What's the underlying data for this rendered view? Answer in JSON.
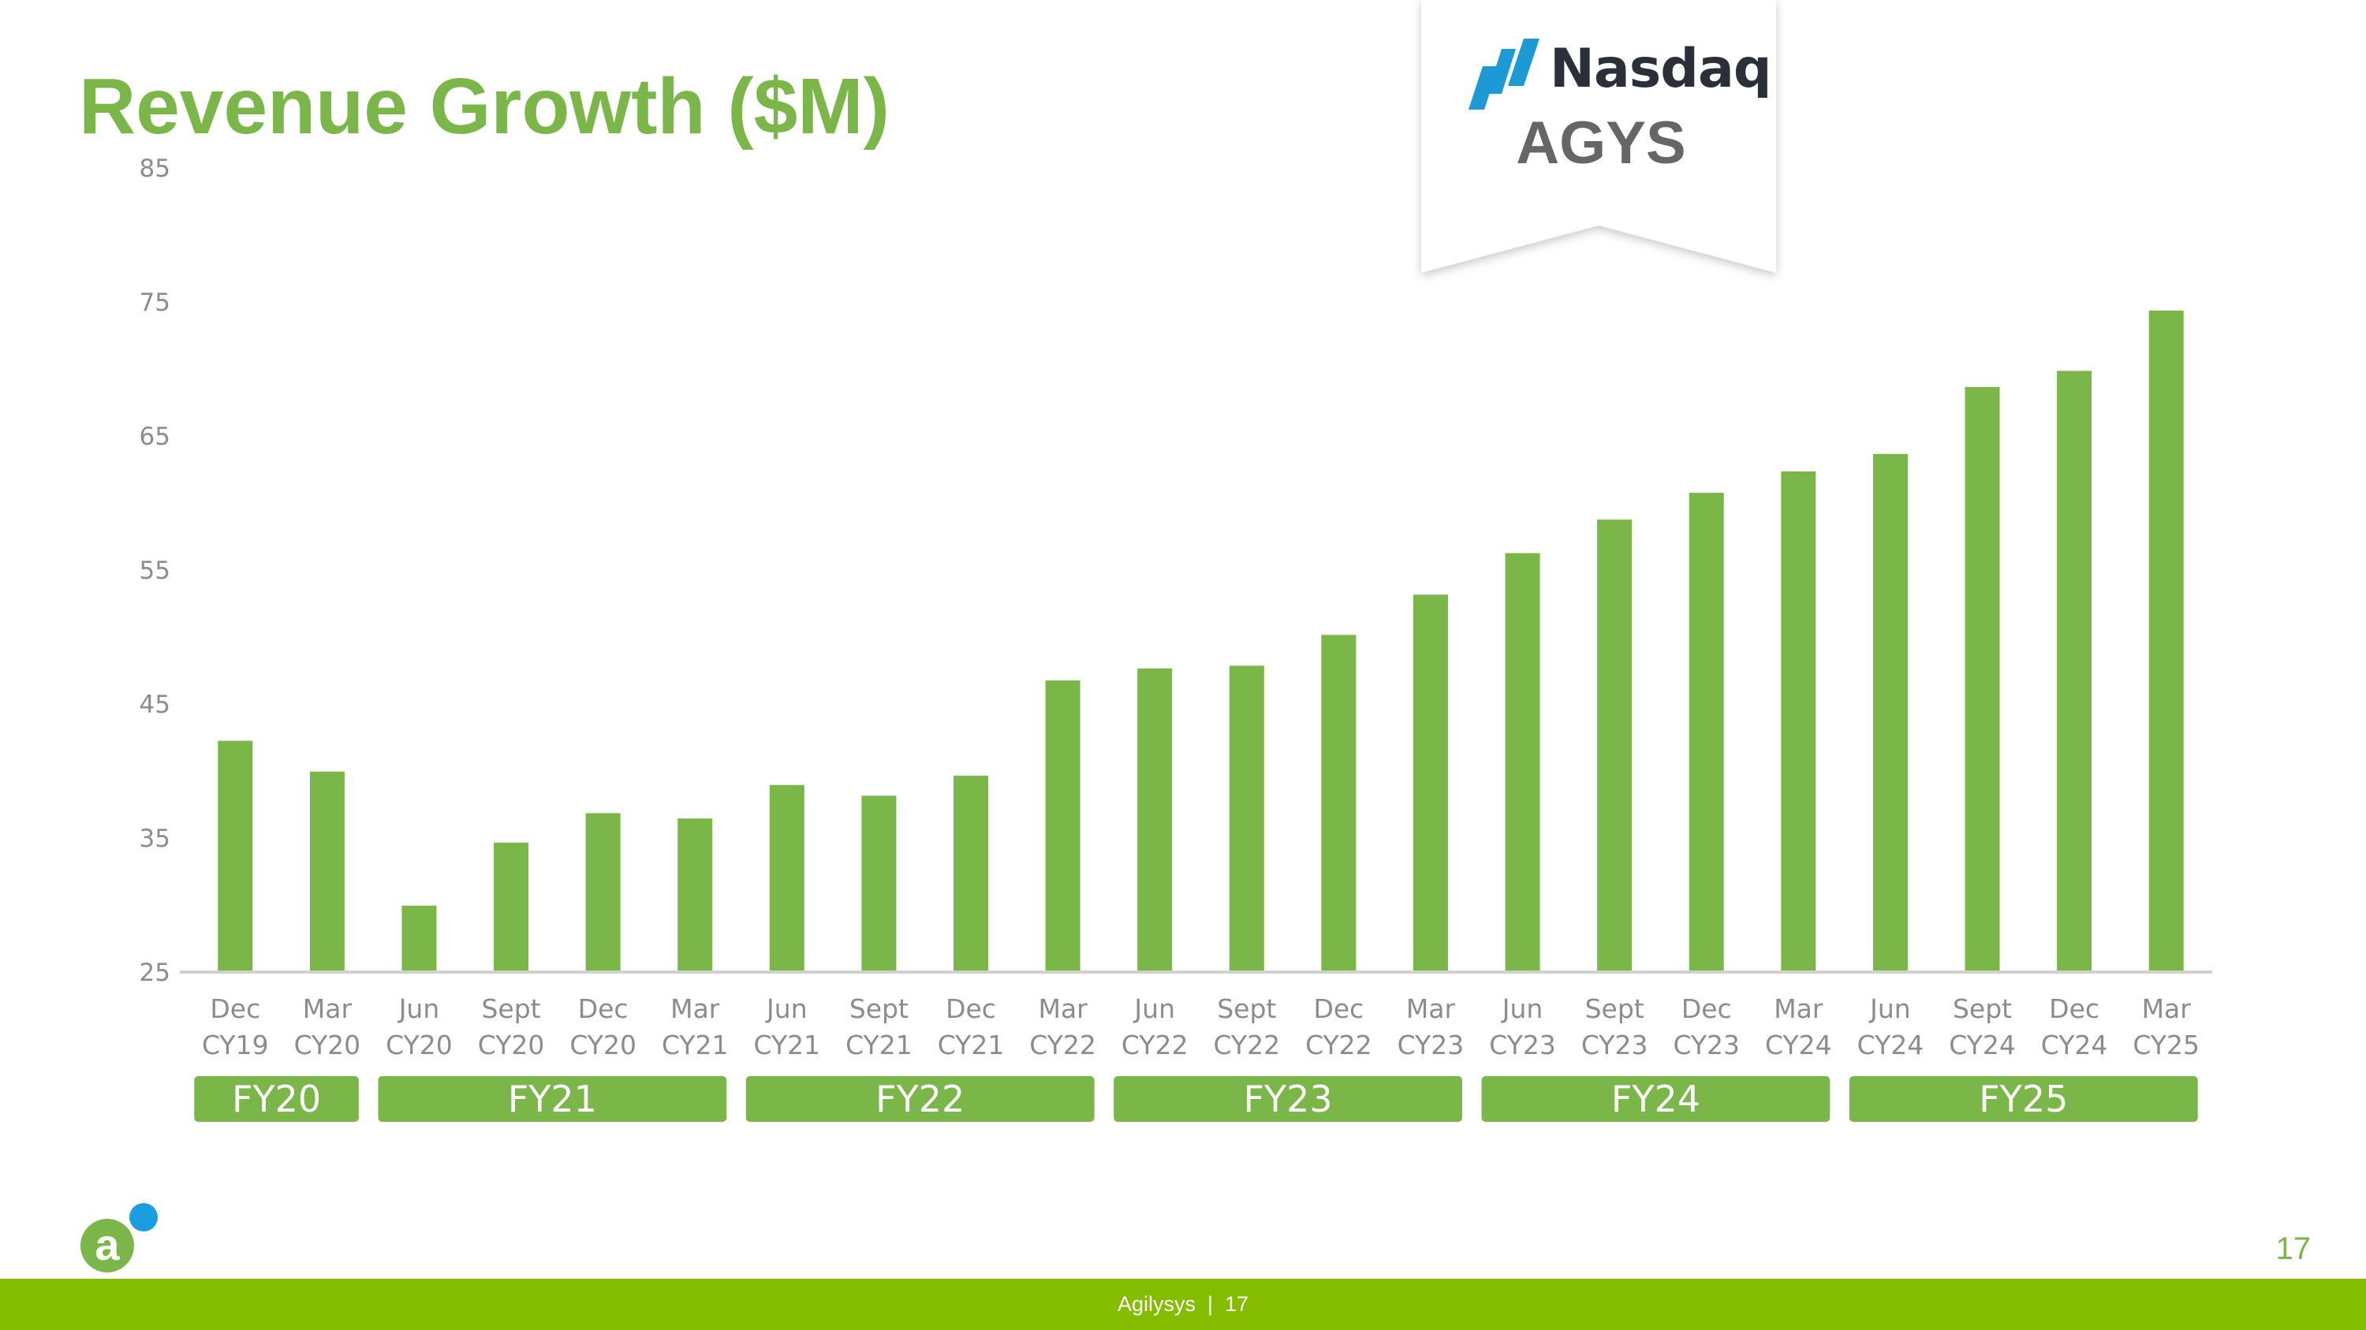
{
  "slide": {
    "title": "Revenue Growth ($M)",
    "page_number": "17",
    "footer_text": "Agilysys  |  17"
  },
  "badge": {
    "exchange": "Nasdaq",
    "ticker": "AGYS",
    "logo_icon": "nasdaq-logo-icon"
  },
  "company_logo": {
    "icon": "agilysys-logo-icon",
    "letter": "a"
  },
  "colors": {
    "title": "#7ab648",
    "bar": "#7ab648",
    "group_box": "#7ab648",
    "footer": "#84bd00",
    "nasdaq_blue": "#1b9ad6",
    "logo_dot": "#1a9ee0"
  },
  "chart_data": {
    "type": "bar",
    "categories": [
      [
        "Dec",
        "CY19"
      ],
      [
        "Mar",
        "CY20"
      ],
      [
        "Jun",
        "CY20"
      ],
      [
        "Sept",
        "CY20"
      ],
      [
        "Dec",
        "CY20"
      ],
      [
        "Mar",
        "CY21"
      ],
      [
        "Jun",
        "CY21"
      ],
      [
        "Sept",
        "CY21"
      ],
      [
        "Dec",
        "CY21"
      ],
      [
        "Mar",
        "CY22"
      ],
      [
        "Jun",
        "CY22"
      ],
      [
        "Sept",
        "CY22"
      ],
      [
        "Dec",
        "CY22"
      ],
      [
        "Mar",
        "CY23"
      ],
      [
        "Jun",
        "CY23"
      ],
      [
        "Sept",
        "CY23"
      ],
      [
        "Dec",
        "CY23"
      ],
      [
        "Mar",
        "CY24"
      ],
      [
        "Jun",
        "CY24"
      ],
      [
        "Sept",
        "CY24"
      ],
      [
        "Dec",
        "CY24"
      ],
      [
        "Mar",
        "CY25"
      ]
    ],
    "values": [
      42.2,
      39.9,
      29.9,
      34.6,
      36.8,
      36.4,
      38.9,
      38.1,
      39.6,
      46.7,
      47.6,
      47.8,
      50.1,
      53.1,
      56.2,
      58.7,
      60.7,
      62.3,
      63.6,
      68.6,
      69.8,
      74.3
    ],
    "ylim": [
      25,
      85
    ],
    "yticks": [
      25,
      35,
      45,
      55,
      65,
      75,
      85
    ],
    "groups": [
      {
        "label": "FY20",
        "from": 0,
        "to": 1
      },
      {
        "label": "FY21",
        "from": 2,
        "to": 5
      },
      {
        "label": "FY22",
        "from": 6,
        "to": 9
      },
      {
        "label": "FY23",
        "from": 10,
        "to": 13
      },
      {
        "label": "FY24",
        "from": 14,
        "to": 17
      },
      {
        "label": "FY25",
        "from": 18,
        "to": 21
      }
    ],
    "grid": false,
    "legend": "none"
  }
}
